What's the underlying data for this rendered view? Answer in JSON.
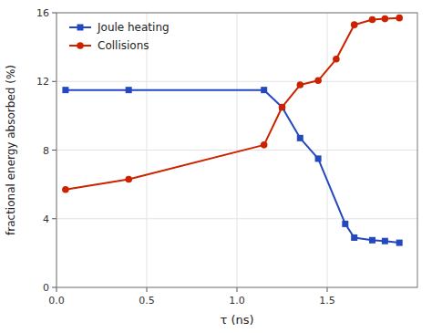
{
  "chart_data": {
    "type": "line",
    "x_label": "τ (ns)",
    "y_label": "fractional energy absorbed (%)",
    "series": [
      {
        "name": "Joule heating",
        "color": "#2448c0",
        "marker": "square",
        "x": [
          0.05,
          0.4,
          1.15,
          1.25,
          1.35,
          1.45,
          1.6,
          1.65,
          1.75,
          1.82,
          1.9
        ],
        "values": [
          11.5,
          11.5,
          11.5,
          10.5,
          8.7,
          7.5,
          3.7,
          2.9,
          2.75,
          2.7,
          2.6
        ]
      },
      {
        "name": "Collisions",
        "color": "#cc2200",
        "marker": "circle",
        "x": [
          0.05,
          0.4,
          1.15,
          1.25,
          1.35,
          1.45,
          1.55,
          1.65,
          1.75,
          1.82,
          1.9
        ],
        "values": [
          5.7,
          6.3,
          8.3,
          10.5,
          11.8,
          12.05,
          13.3,
          15.3,
          15.6,
          15.65,
          15.7
        ]
      }
    ],
    "xlim": [
      0,
      2.0
    ],
    "ylim": [
      0,
      16
    ],
    "xticks": [
      {
        "value": 0,
        "label": "0.0"
      },
      0.5,
      {
        "value": 1.0,
        "label": "1.0"
      },
      1.5
    ],
    "yticks": [
      0,
      4,
      8,
      12,
      16
    ],
    "grid": true,
    "legend": "upper left"
  }
}
